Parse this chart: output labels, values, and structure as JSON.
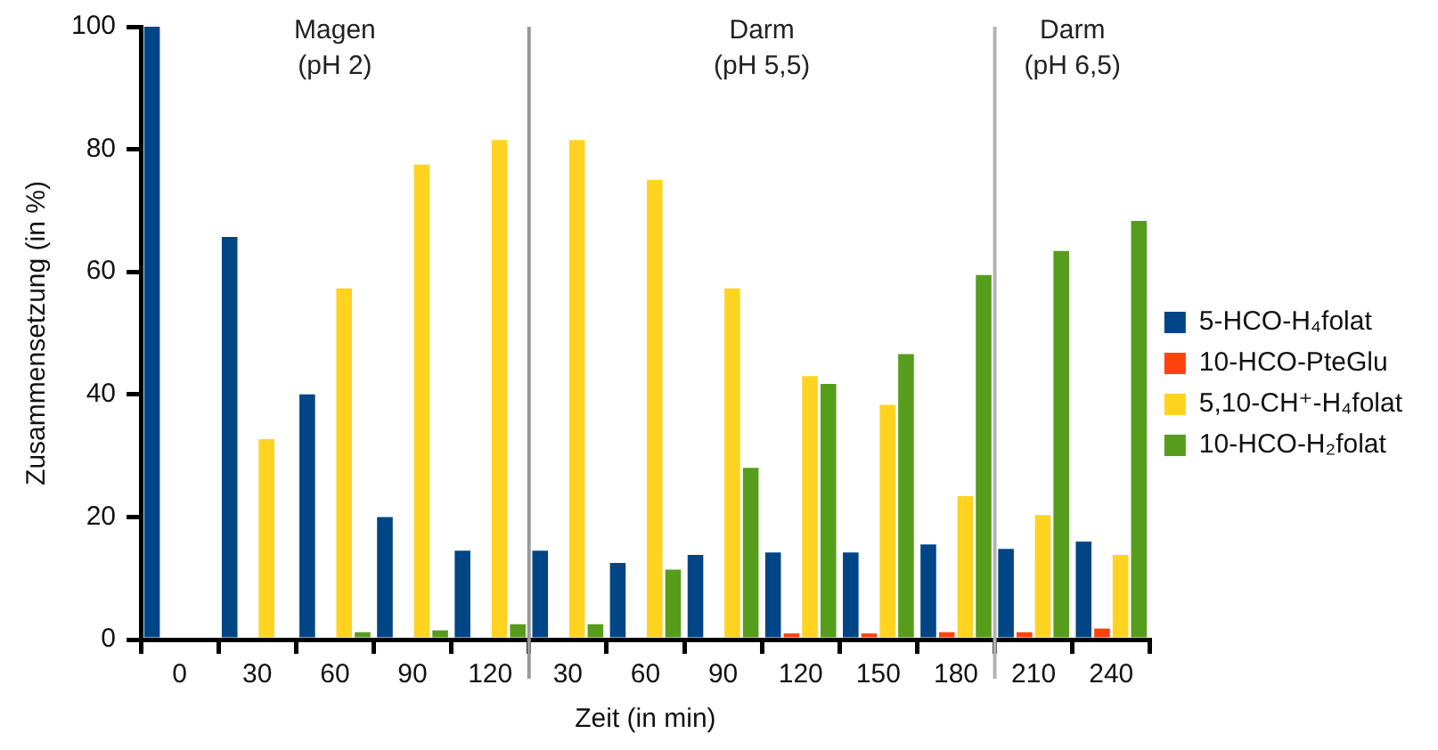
{
  "chart_data": {
    "type": "bar",
    "xlabel": "Zeit (in min)",
    "ylabel": "Zusammensetzung (in %)",
    "categories": [
      "0",
      "30",
      "60",
      "90",
      "120",
      "30",
      "60",
      "90",
      "120",
      "150",
      "180",
      "210",
      "240"
    ],
    "series": [
      {
        "name": "5-HCO-H₄folat",
        "color": "#004586",
        "values": [
          100,
          65.7,
          40,
          20,
          14.5,
          14.5,
          12.5,
          13.8,
          14.2,
          14.2,
          15.5,
          14.8,
          16
        ]
      },
      {
        "name": "10-HCO-PteGlu",
        "color": "#ff420e",
        "values": [
          0,
          0,
          0,
          0,
          0,
          0,
          0,
          0,
          1,
          1,
          1.2,
          1.2,
          1.8
        ]
      },
      {
        "name": "5,10-CH⁺-H₄folat",
        "color": "#ffd320",
        "values": [
          0,
          32.7,
          57.3,
          77.5,
          81.5,
          81.5,
          75,
          57.3,
          43,
          38.3,
          23.4,
          20.3,
          13.8
        ]
      },
      {
        "name": "10-HCO-H₂folat",
        "color": "#579d1c",
        "values": [
          0,
          0,
          1.2,
          1.5,
          2.5,
          2.5,
          11.4,
          28,
          41.7,
          46.6,
          59.5,
          63.4,
          68.3
        ]
      }
    ],
    "ylim": [
      0,
      100
    ],
    "yticks": [
      0,
      20,
      40,
      60,
      80,
      100
    ],
    "grid": false,
    "legend": "right",
    "ref_lines": [
      {
        "axis": "x",
        "value": "120",
        "color": "#999999"
      },
      {
        "axis": "x",
        "value": "180",
        "color": "#b3b3b3"
      }
    ],
    "annotations": [
      "Magen\n(pH 2)",
      "Darm\n(pH 5,5)",
      "Darm\n(pH 6,5)"
    ]
  }
}
